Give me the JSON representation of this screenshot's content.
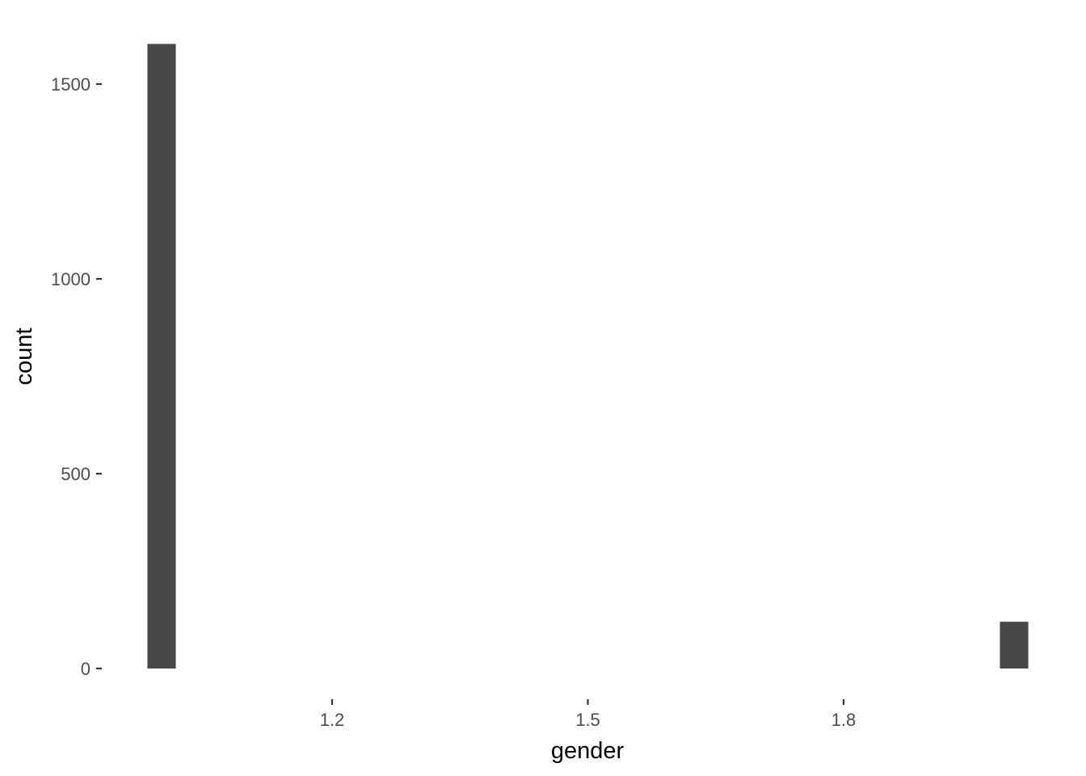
{
  "chart_data": {
    "type": "bar",
    "subtype": "histogram",
    "title": "",
    "xlabel": "gender",
    "ylabel": "count",
    "bins": [
      {
        "center": 1.0,
        "count": 1603
      },
      {
        "center": 2.0,
        "count": 120
      }
    ],
    "bin_width": 0.0333,
    "xlim": [
      0.95,
      2.05
    ],
    "ylim": [
      0,
      1700
    ],
    "x_ticks": [
      {
        "value": 1.2,
        "label": "1.2"
      },
      {
        "value": 1.5,
        "label": "1.5"
      },
      {
        "value": 1.8,
        "label": "1.8"
      }
    ],
    "y_ticks": [
      {
        "value": 0,
        "label": "0"
      },
      {
        "value": 500,
        "label": "500"
      },
      {
        "value": 1000,
        "label": "1000"
      },
      {
        "value": 1500,
        "label": "1500"
      }
    ],
    "grid": false,
    "legend": "none",
    "bar_color": "#474747",
    "background": "#ffffff"
  }
}
